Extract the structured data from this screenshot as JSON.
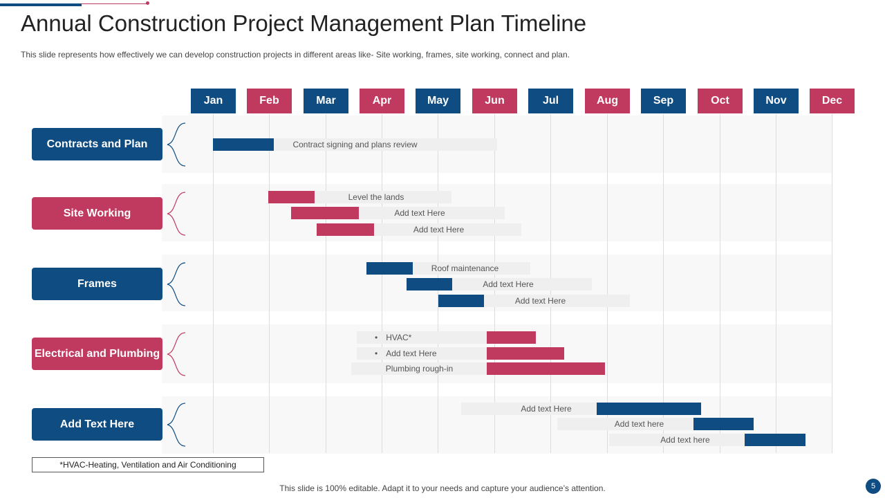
{
  "title": "Annual Construction Project Management Plan Timeline",
  "subtitle": "This slide represents how effectively we can develop construction projects in different areas like- Site working, frames, site working, connect and plan.",
  "colors": {
    "blue": "#0f4c81",
    "pink": "#c0395e"
  },
  "months": [
    "Jan",
    "Feb",
    "Mar",
    "Apr",
    "May",
    "Jun",
    "Jul",
    "Aug",
    "Sep",
    "Oct",
    "Nov",
    "Dec"
  ],
  "categories": [
    {
      "label": "Contracts  and Plan"
    },
    {
      "label": "Site Working"
    },
    {
      "label": "Frames"
    },
    {
      "label": "Electrical and Plumbing"
    },
    {
      "label": "Add Text Here"
    }
  ],
  "tasks": {
    "contracts": [
      {
        "label": "Contract signing and plans review"
      }
    ],
    "site": [
      {
        "label": "Level the lands"
      },
      {
        "label": "Add text Here"
      },
      {
        "label": "Add text Here"
      }
    ],
    "frames": [
      {
        "label": "Roof maintenance"
      },
      {
        "label": "Add text Here"
      },
      {
        "label": "Add text Here"
      }
    ],
    "electrical": [
      {
        "bullet": "•",
        "label": "HVAC*"
      },
      {
        "bullet": "•",
        "label": "Add text Here"
      },
      {
        "label": "Plumbing rough-in"
      }
    ],
    "other": [
      {
        "label": "Add text Here"
      },
      {
        "label": "Add text here"
      },
      {
        "label": "Add text here"
      }
    ]
  },
  "footnote": "*HVAC-Heating, Ventilation and Air Conditioning",
  "footer": "This slide is 100% editable. Adapt it to your needs and capture your audience’s attention.",
  "page_number": "5"
}
